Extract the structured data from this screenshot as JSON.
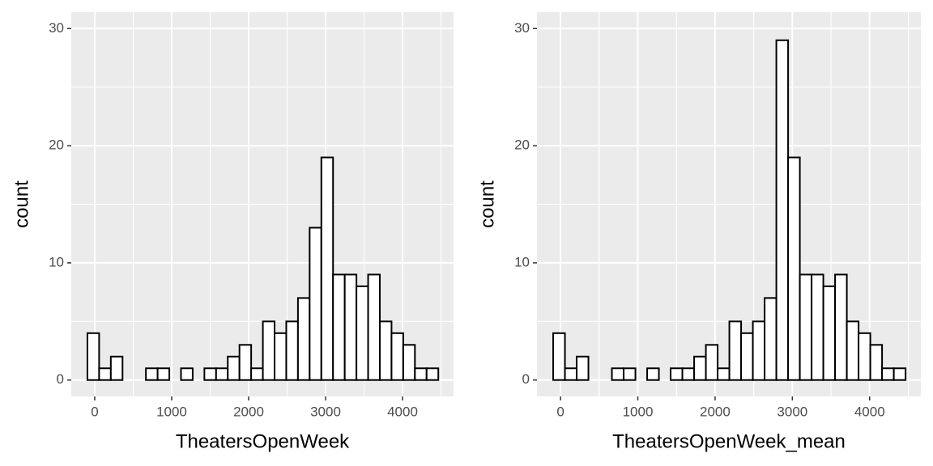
{
  "chart_data": [
    {
      "type": "histogram",
      "x_label": "TheatersOpenWeek",
      "y_label": "count",
      "bins": [
        -95,
        57,
        209,
        361,
        513,
        665,
        817,
        969,
        1121,
        1273,
        1425,
        1577,
        1729,
        1881,
        2033,
        2185,
        2337,
        2489,
        2641,
        2793,
        2945,
        3097,
        3249,
        3401,
        3553,
        3705,
        3857,
        4009,
        4161,
        4313,
        4465
      ],
      "values": [
        4,
        1,
        2,
        0,
        0,
        1,
        1,
        0,
        1,
        0,
        1,
        1,
        2,
        3,
        1,
        5,
        4,
        5,
        7,
        13,
        19,
        9,
        9,
        8,
        9,
        5,
        4,
        3,
        1,
        1
      ],
      "color": "#ffffff",
      "edge_color": "#000000",
      "xlim": [
        -305,
        4663
      ],
      "xticks": [
        0,
        1000,
        2000,
        3000,
        4000
      ],
      "ylim": [
        -1.4,
        31.4
      ],
      "yticks": [
        0,
        10,
        20,
        30
      ],
      "grid": true
    },
    {
      "type": "histogram",
      "x_label": "TheatersOpenWeek_mean",
      "y_label": "count",
      "bins": [
        -95,
        57,
        209,
        361,
        513,
        665,
        817,
        969,
        1121,
        1273,
        1425,
        1577,
        1729,
        1881,
        2033,
        2185,
        2337,
        2489,
        2641,
        2793,
        2945,
        3097,
        3249,
        3401,
        3553,
        3705,
        3857,
        4009,
        4161,
        4313,
        4465
      ],
      "values": [
        4,
        1,
        2,
        0,
        0,
        1,
        1,
        0,
        1,
        0,
        1,
        1,
        2,
        3,
        1,
        5,
        4,
        5,
        7,
        29,
        19,
        9,
        9,
        8,
        9,
        5,
        4,
        3,
        1,
        1
      ],
      "color": "#ffffff",
      "edge_color": "#000000",
      "xlim": [
        -305,
        4663
      ],
      "xticks": [
        0,
        1000,
        2000,
        3000,
        4000
      ],
      "ylim": [
        -1.4,
        31.4
      ],
      "yticks": [
        0,
        10,
        20,
        30
      ],
      "grid": true
    }
  ]
}
